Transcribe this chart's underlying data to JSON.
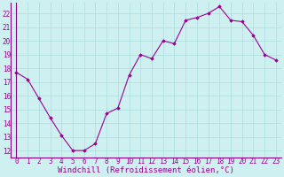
{
  "x": [
    0,
    1,
    2,
    3,
    4,
    5,
    6,
    7,
    8,
    9,
    10,
    11,
    12,
    13,
    14,
    15,
    16,
    17,
    18,
    19,
    20,
    21,
    22,
    23
  ],
  "y": [
    17.7,
    17.2,
    15.8,
    14.4,
    13.1,
    12.0,
    12.0,
    12.5,
    14.7,
    15.1,
    17.5,
    19.0,
    18.7,
    20.0,
    19.8,
    21.5,
    21.7,
    22.0,
    22.5,
    21.5,
    21.4,
    20.4,
    19.0,
    18.6
  ],
  "xlim": [
    -0.5,
    23.5
  ],
  "ylim": [
    11.5,
    22.8
  ],
  "yticks": [
    12,
    13,
    14,
    15,
    16,
    17,
    18,
    19,
    20,
    21,
    22
  ],
  "xticks": [
    0,
    1,
    2,
    3,
    4,
    5,
    6,
    7,
    8,
    9,
    10,
    11,
    12,
    13,
    14,
    15,
    16,
    17,
    18,
    19,
    20,
    21,
    22,
    23
  ],
  "xlabel": "Windchill (Refroidissement éolien,°C)",
  "line_color": "#990099",
  "marker": "D",
  "marker_size": 1.8,
  "bg_color": "#cff0f0",
  "grid_color": "#aadddd",
  "tick_label_fontsize": 5.5,
  "xlabel_fontsize": 6.5,
  "spine_color": "#8b008b"
}
